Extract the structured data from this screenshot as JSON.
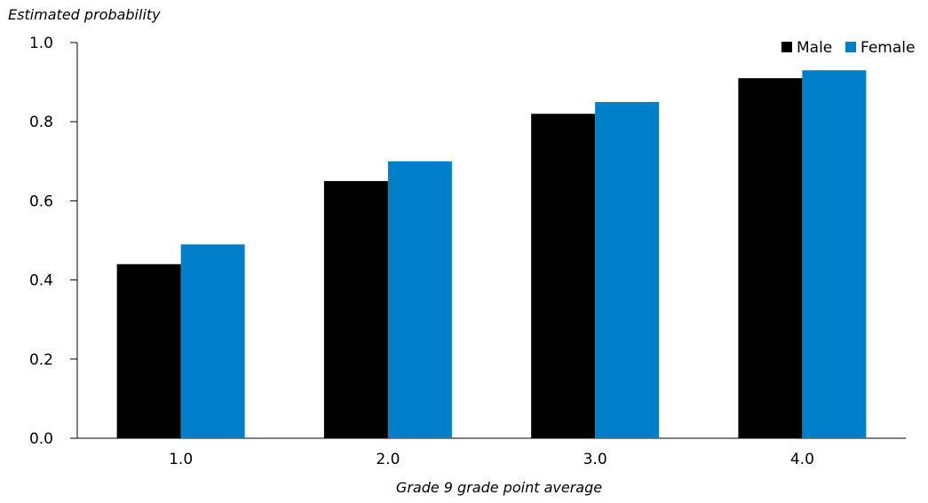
{
  "chart_data": {
    "type": "bar",
    "title": "",
    "ylabel": "Estimated probability",
    "xlabel": "Grade 9 grade point average",
    "categories": [
      "1.0",
      "2.0",
      "3.0",
      "4.0"
    ],
    "ylim": [
      0,
      1.0
    ],
    "yticks": [
      "0.0",
      "0.2",
      "0.4",
      "0.6",
      "0.8",
      "1.0"
    ],
    "grid": false,
    "legend_position": "top-right",
    "series": [
      {
        "name": "Male",
        "color": "#000000",
        "values": [
          0.44,
          0.65,
          0.82,
          0.91
        ]
      },
      {
        "name": "Female",
        "color": "#0080c8",
        "values": [
          0.49,
          0.7,
          0.85,
          0.93
        ]
      }
    ]
  }
}
